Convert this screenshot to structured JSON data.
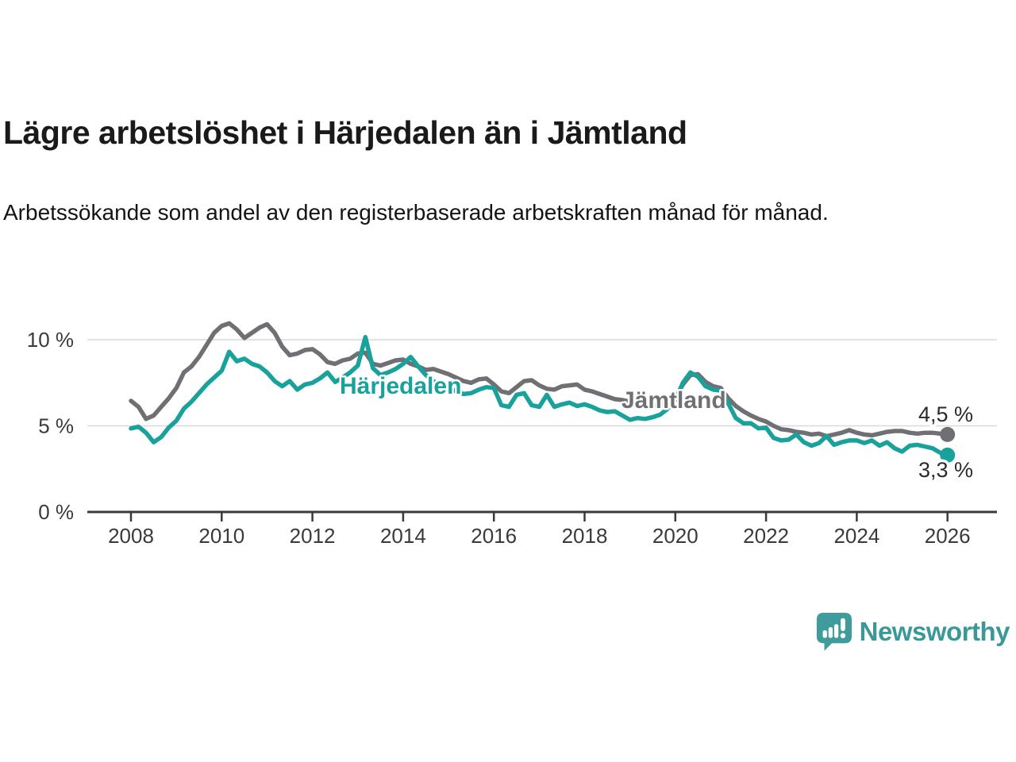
{
  "header": {
    "title": "Lägre arbetslöshet i Härjedalen än i Jämtland",
    "subtitle": "Arbetssökande som andel av den registerbaserade arbetskraften månad för månad."
  },
  "chart_data": {
    "type": "line",
    "title": "Lägre arbetslöshet i Härjedalen än i Jämtland",
    "subtitle": "Arbetssökande som andel av den registerbaserade arbetskraften månad för månad.",
    "unit": "%",
    "x_start_year": 2008,
    "x_step_months": 2,
    "xlim": [
      2007,
      2027.1
    ],
    "ylim": [
      0,
      11.5
    ],
    "grid": "horizontal-only",
    "x_ticks": [
      "2008",
      "2010",
      "2012",
      "2014",
      "2016",
      "2018",
      "2020",
      "2022",
      "2024",
      "2026"
    ],
    "y_ticks": [
      {
        "value": 0,
        "label": "0 %"
      },
      {
        "value": 5,
        "label": "5 %"
      },
      {
        "value": 10,
        "label": "10 %"
      }
    ],
    "colors": {
      "jamtland": "#706f74",
      "harjedalen": "#18a29b",
      "grid": "#d9d9d9",
      "axis": "#3a3a3a"
    },
    "series": [
      {
        "name": "Jämtland",
        "color": "#706f74",
        "end_label": "4,5 %",
        "end_value": 4.5,
        "values": [
          6.45,
          6.1,
          5.4,
          5.6,
          6.1,
          6.6,
          7.2,
          8.1,
          8.45,
          9.0,
          9.7,
          10.4,
          10.8,
          10.95,
          10.6,
          10.1,
          10.4,
          10.7,
          10.9,
          10.4,
          9.6,
          9.1,
          9.2,
          9.4,
          9.45,
          9.15,
          8.7,
          8.6,
          8.8,
          8.9,
          9.2,
          9.25,
          8.6,
          8.5,
          8.65,
          8.8,
          8.85,
          8.6,
          8.45,
          8.25,
          8.3,
          8.15,
          8.0,
          7.8,
          7.6,
          7.5,
          7.7,
          7.75,
          7.4,
          7.0,
          6.9,
          7.25,
          7.6,
          7.65,
          7.35,
          7.15,
          7.1,
          7.3,
          7.35,
          7.4,
          7.1,
          7.0,
          6.85,
          6.7,
          6.55,
          6.5,
          6.4,
          6.3,
          6.2,
          6.15,
          6.25,
          6.4,
          6.6,
          7.4,
          7.95,
          8.0,
          7.55,
          7.3,
          7.2,
          6.6,
          6.15,
          5.85,
          5.6,
          5.4,
          5.25,
          5.0,
          4.8,
          4.75,
          4.65,
          4.6,
          4.5,
          4.55,
          4.4,
          4.5,
          4.6,
          4.75,
          4.6,
          4.5,
          4.45,
          4.55,
          4.65,
          4.7,
          4.7,
          4.6,
          4.55,
          4.6,
          4.6,
          4.55,
          4.5
        ]
      },
      {
        "name": "Härjedalen",
        "color": "#18a29b",
        "end_label": "3,3 %",
        "end_value": 3.3,
        "values": [
          4.85,
          4.95,
          4.6,
          4.05,
          4.35,
          4.9,
          5.3,
          6.0,
          6.4,
          6.9,
          7.4,
          7.8,
          8.2,
          9.3,
          8.75,
          8.9,
          8.6,
          8.45,
          8.1,
          7.6,
          7.3,
          7.6,
          7.1,
          7.4,
          7.5,
          7.75,
          8.1,
          7.55,
          7.8,
          8.1,
          8.5,
          10.15,
          8.35,
          7.95,
          8.1,
          8.3,
          8.6,
          9.0,
          8.45,
          7.95,
          7.6,
          7.35,
          7.2,
          7.0,
          6.85,
          6.9,
          7.1,
          7.25,
          7.2,
          6.2,
          6.1,
          6.8,
          6.9,
          6.2,
          6.1,
          6.8,
          6.1,
          6.25,
          6.35,
          6.15,
          6.25,
          6.1,
          5.9,
          5.8,
          5.85,
          5.6,
          5.35,
          5.45,
          5.4,
          5.5,
          5.65,
          6.0,
          6.5,
          7.5,
          8.1,
          7.85,
          7.3,
          7.1,
          7.05,
          6.3,
          5.45,
          5.15,
          5.15,
          4.85,
          4.9,
          4.3,
          4.15,
          4.2,
          4.5,
          4.05,
          3.85,
          4.0,
          4.4,
          3.9,
          4.05,
          4.15,
          4.15,
          4.0,
          4.15,
          3.85,
          4.05,
          3.7,
          3.5,
          3.85,
          3.9,
          3.8,
          3.7,
          3.45,
          3.3
        ]
      }
    ],
    "legend_position": "inline-labels"
  },
  "footer": {
    "brand": "Newsworthy"
  }
}
